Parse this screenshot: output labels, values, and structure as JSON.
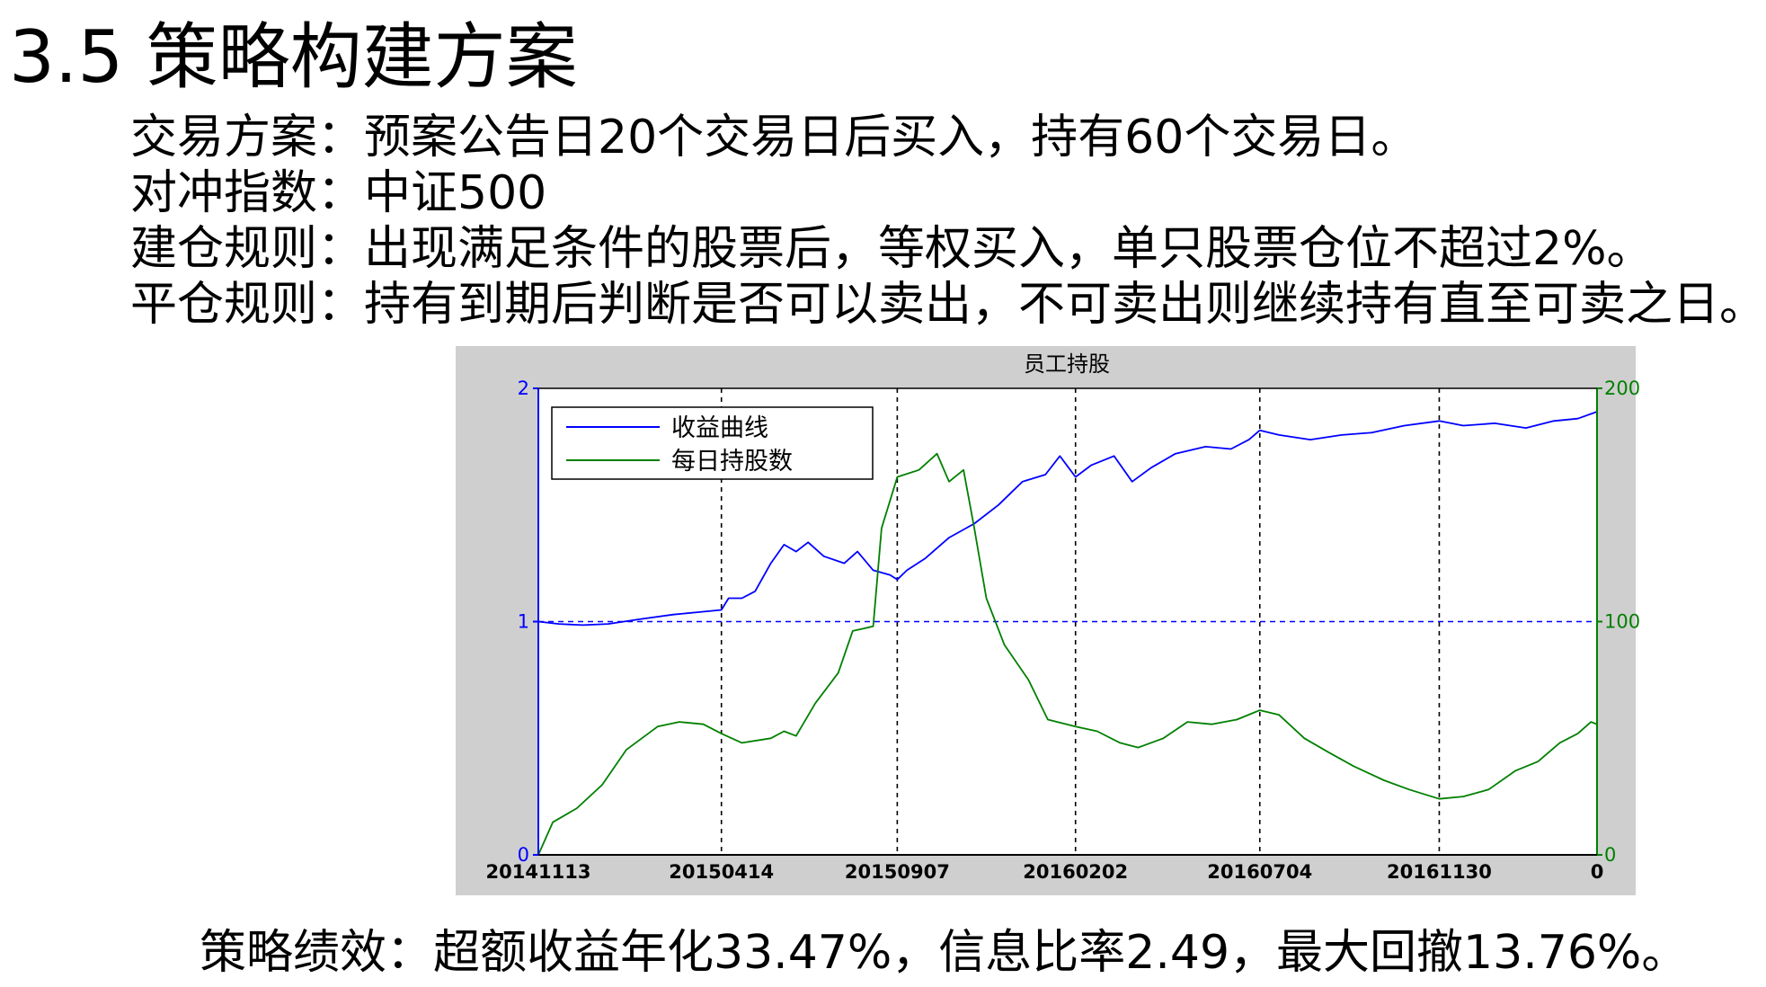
{
  "slide": {
    "title": "3.5 策略构建方案",
    "bullets": [
      "交易方案：预案公告日20个交易日后买入，持有60个交易日。",
      "对冲指数：中证500",
      "建仓规则：出现满足条件的股票后，等权买入，单只股票仓位不超过2%。",
      "平仓规则：持有到期后判断是否可以卖出，不可卖出则继续持有直至可卖之日。"
    ],
    "footer": "策略绩效：超额收益年化33.47%，信息比率2.49，最大回撤13.76%。"
  },
  "chart_data": {
    "type": "line",
    "title": "员工持股",
    "x_tick_labels": [
      "20141113",
      "20150414",
      "20150907",
      "20160202",
      "20160704",
      "20161130"
    ],
    "x_range": [
      "2014-11-13",
      "2017-04-10"
    ],
    "y_left": {
      "range": [
        0,
        2
      ],
      "ticks": [
        0,
        1,
        2
      ],
      "color": "#0000ff"
    },
    "y_right": {
      "range": [
        0,
        200
      ],
      "ticks": [
        0,
        100,
        200
      ],
      "color": "#008000"
    },
    "x_corner_label": "0",
    "grid": "vertical dashed at x ticks; horizontal dashed blue at y=1",
    "legend": {
      "position": "top-left"
    },
    "series": [
      {
        "name": "收益曲线",
        "axis": "left",
        "color": "#0000ff",
        "points": [
          [
            "2014-11-13",
            1.0
          ],
          [
            "2014-11-30",
            0.99
          ],
          [
            "2014-12-20",
            0.985
          ],
          [
            "2015-01-10",
            0.99
          ],
          [
            "2015-02-05",
            1.01
          ],
          [
            "2015-03-05",
            1.03
          ],
          [
            "2015-03-25",
            1.04
          ],
          [
            "2015-04-14",
            1.05
          ],
          [
            "2015-04-20",
            1.1
          ],
          [
            "2015-05-01",
            1.1
          ],
          [
            "2015-05-12",
            1.13
          ],
          [
            "2015-05-25",
            1.25
          ],
          [
            "2015-06-05",
            1.33
          ],
          [
            "2015-06-15",
            1.3
          ],
          [
            "2015-06-25",
            1.34
          ],
          [
            "2015-07-08",
            1.28
          ],
          [
            "2015-07-25",
            1.25
          ],
          [
            "2015-08-05",
            1.3
          ],
          [
            "2015-08-18",
            1.22
          ],
          [
            "2015-09-01",
            1.2
          ],
          [
            "2015-09-07",
            1.18
          ],
          [
            "2015-09-15",
            1.22
          ],
          [
            "2015-09-30",
            1.27
          ],
          [
            "2015-10-20",
            1.36
          ],
          [
            "2015-11-10",
            1.42
          ],
          [
            "2015-11-30",
            1.5
          ],
          [
            "2015-12-20",
            1.6
          ],
          [
            "2016-01-08",
            1.63
          ],
          [
            "2016-01-20",
            1.71
          ],
          [
            "2016-02-02",
            1.62
          ],
          [
            "2016-02-15",
            1.67
          ],
          [
            "2016-03-05",
            1.71
          ],
          [
            "2016-03-20",
            1.6
          ],
          [
            "2016-04-05",
            1.66
          ],
          [
            "2016-04-25",
            1.72
          ],
          [
            "2016-05-20",
            1.75
          ],
          [
            "2016-06-10",
            1.74
          ],
          [
            "2016-06-25",
            1.78
          ],
          [
            "2016-07-04",
            1.82
          ],
          [
            "2016-07-20",
            1.8
          ],
          [
            "2016-08-15",
            1.78
          ],
          [
            "2016-09-10",
            1.8
          ],
          [
            "2016-10-05",
            1.81
          ],
          [
            "2016-11-01",
            1.84
          ],
          [
            "2016-11-30",
            1.86
          ],
          [
            "2016-12-20",
            1.84
          ],
          [
            "2017-01-15",
            1.85
          ],
          [
            "2017-02-10",
            1.83
          ],
          [
            "2017-03-05",
            1.86
          ],
          [
            "2017-03-25",
            1.87
          ],
          [
            "2017-04-10",
            1.9
          ]
        ]
      },
      {
        "name": "每日持股数",
        "axis": "right",
        "color": "#008000",
        "points": [
          [
            "2014-11-13",
            0
          ],
          [
            "2014-11-25",
            14
          ],
          [
            "2014-12-15",
            20
          ],
          [
            "2015-01-05",
            30
          ],
          [
            "2015-01-25",
            45
          ],
          [
            "2015-02-20",
            55
          ],
          [
            "2015-03-10",
            57
          ],
          [
            "2015-03-30",
            56
          ],
          [
            "2015-04-14",
            52
          ],
          [
            "2015-05-01",
            48
          ],
          [
            "2015-05-25",
            50
          ],
          [
            "2015-06-05",
            53
          ],
          [
            "2015-06-15",
            51
          ],
          [
            "2015-07-01",
            65
          ],
          [
            "2015-07-20",
            78
          ],
          [
            "2015-08-01",
            96
          ],
          [
            "2015-08-10",
            97
          ],
          [
            "2015-08-18",
            98
          ],
          [
            "2015-08-25",
            140
          ],
          [
            "2015-09-07",
            162
          ],
          [
            "2015-09-25",
            165
          ],
          [
            "2015-10-10",
            172
          ],
          [
            "2015-10-20",
            160
          ],
          [
            "2015-11-01",
            165
          ],
          [
            "2015-11-10",
            140
          ],
          [
            "2015-11-20",
            110
          ],
          [
            "2015-12-05",
            90
          ],
          [
            "2015-12-25",
            75
          ],
          [
            "2016-01-10",
            58
          ],
          [
            "2016-02-02",
            55
          ],
          [
            "2016-02-20",
            53
          ],
          [
            "2016-03-10",
            48
          ],
          [
            "2016-03-25",
            46
          ],
          [
            "2016-04-15",
            50
          ],
          [
            "2016-05-05",
            57
          ],
          [
            "2016-05-25",
            56
          ],
          [
            "2016-06-15",
            58
          ],
          [
            "2016-07-04",
            62
          ],
          [
            "2016-07-20",
            60
          ],
          [
            "2016-08-10",
            50
          ],
          [
            "2016-08-30",
            44
          ],
          [
            "2016-09-20",
            38
          ],
          [
            "2016-10-15",
            32
          ],
          [
            "2016-11-05",
            28
          ],
          [
            "2016-11-30",
            24
          ],
          [
            "2016-12-20",
            25
          ],
          [
            "2017-01-10",
            28
          ],
          [
            "2017-02-01",
            36
          ],
          [
            "2017-02-20",
            40
          ],
          [
            "2017-03-10",
            48
          ],
          [
            "2017-03-25",
            52
          ],
          [
            "2017-04-05",
            57
          ],
          [
            "2017-04-10",
            56
          ]
        ]
      }
    ]
  }
}
